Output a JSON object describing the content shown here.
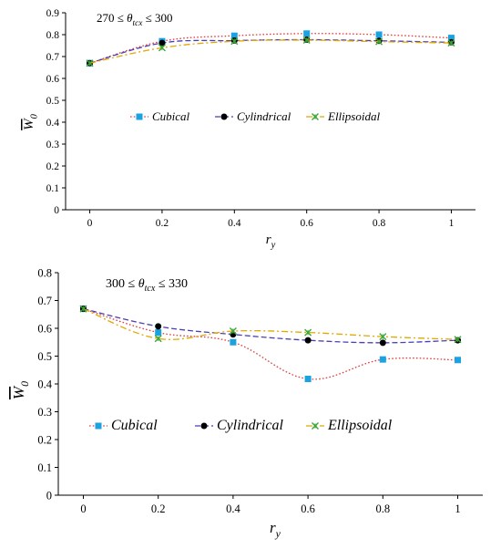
{
  "chart_data": [
    {
      "type": "line",
      "annotation": {
        "text": "270 ≤ θtcx ≤ 300",
        "lower": "270",
        "upper": "300",
        "symbol": "θ",
        "subscript": "tcx",
        "relation": "≤"
      },
      "ylabel": {
        "base": "W",
        "subscript": "0"
      },
      "xlabel": {
        "base": "r",
        "subscript": "y"
      },
      "x": [
        0,
        0.2,
        0.4,
        0.6,
        0.8,
        1
      ],
      "xlim": [
        0,
        1
      ],
      "ylim": [
        0,
        0.9
      ],
      "xticks": [
        "0",
        "0.2",
        "0.4",
        "0.6",
        "0.8",
        "1"
      ],
      "yticks": [
        "0",
        "0.1",
        "0.2",
        "0.3",
        "0.4",
        "0.5",
        "0.6",
        "0.7",
        "0.8",
        "0.9"
      ],
      "yticks_values": [
        0,
        0.1,
        0.2,
        0.3,
        0.4,
        0.5,
        0.6,
        0.7,
        0.8,
        0.9
      ],
      "grid": false,
      "legend_position": "center",
      "series": [
        {
          "name": "Cubical",
          "values": [
            0.67,
            0.77,
            0.795,
            0.805,
            0.8,
            0.785
          ],
          "color": "#1aa3e0",
          "line_color": "#e03c3c",
          "marker": "square",
          "line_style": "dotted"
        },
        {
          "name": "Cylindrical",
          "values": [
            0.67,
            0.762,
            0.773,
            0.777,
            0.772,
            0.765
          ],
          "color": "#000000",
          "line_color": "#4a3fb5",
          "marker": "circle",
          "line_style": "dashed"
        },
        {
          "name": "Ellipsoidal",
          "values": [
            0.67,
            0.74,
            0.77,
            0.775,
            0.768,
            0.762
          ],
          "color": "#3aa63a",
          "line_color": "#e0a800",
          "marker": "x",
          "line_style": "dashdot"
        }
      ]
    },
    {
      "type": "line",
      "annotation": {
        "text": "300 ≤ θtcx ≤ 330",
        "lower": "300",
        "upper": "330",
        "symbol": "θ",
        "subscript": "tcx",
        "relation": "≤"
      },
      "ylabel": {
        "base": "W",
        "subscript": "0"
      },
      "xlabel": {
        "base": "r",
        "subscript": "y"
      },
      "x": [
        0,
        0.2,
        0.4,
        0.6,
        0.8,
        1
      ],
      "xlim": [
        0,
        1
      ],
      "ylim": [
        0,
        0.8
      ],
      "xticks": [
        "0",
        "0.2",
        "0.4",
        "0.6",
        "0.8",
        "1"
      ],
      "yticks": [
        "0",
        "0.1",
        "0.2",
        "0.3",
        "0.4",
        "0.5",
        "0.6",
        "0.7",
        "0.8"
      ],
      "yticks_values": [
        0,
        0.1,
        0.2,
        0.3,
        0.4,
        0.5,
        0.6,
        0.7,
        0.8
      ],
      "grid": false,
      "legend_position": "center",
      "series": [
        {
          "name": "Cubical",
          "values": [
            0.67,
            0.585,
            0.55,
            0.418,
            0.488,
            0.486
          ],
          "color": "#1aa3e0",
          "line_color": "#e03c3c",
          "marker": "square",
          "line_style": "dotted"
        },
        {
          "name": "Cylindrical",
          "values": [
            0.67,
            0.607,
            0.578,
            0.557,
            0.548,
            0.557
          ],
          "color": "#000000",
          "line_color": "#4a3fb5",
          "marker": "circle",
          "line_style": "dashed"
        },
        {
          "name": "Ellipsoidal",
          "values": [
            0.67,
            0.563,
            0.59,
            0.585,
            0.57,
            0.56
          ],
          "color": "#3aa63a",
          "line_color": "#e0a800",
          "marker": "x",
          "line_style": "dashdot"
        }
      ]
    }
  ]
}
